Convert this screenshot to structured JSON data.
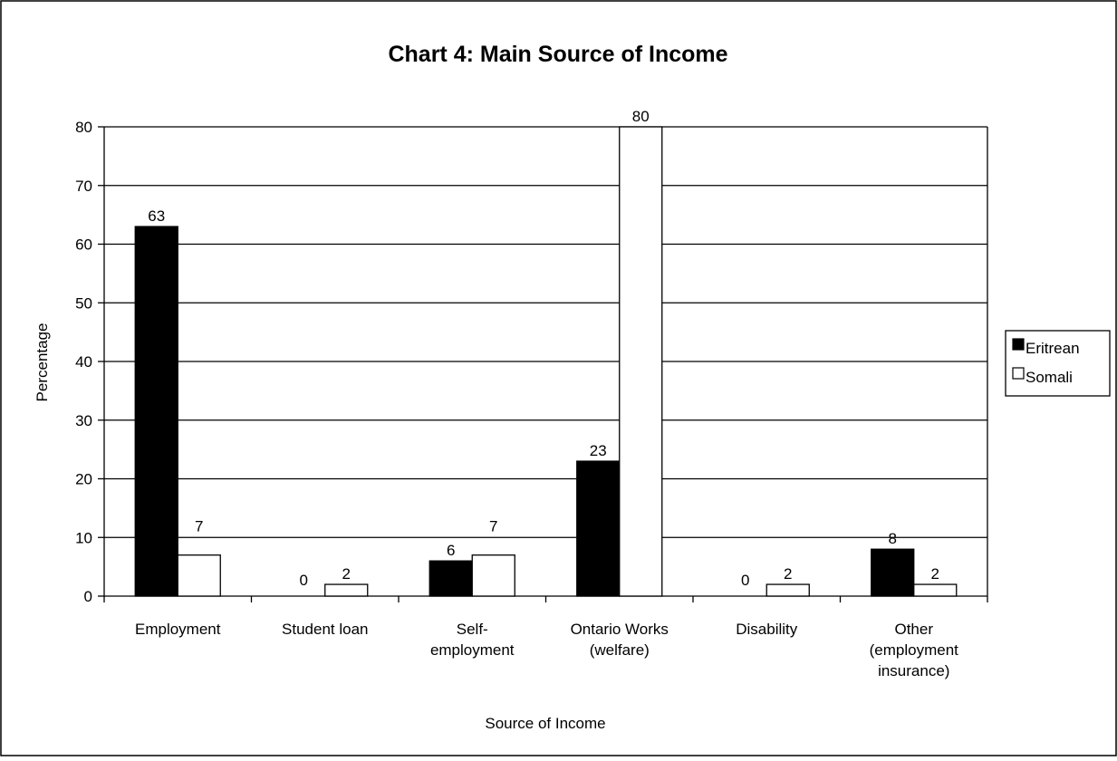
{
  "chart_data": {
    "type": "bar",
    "title": "Chart 4: Main Source of Income",
    "xlabel": "Source of Income",
    "ylabel": "Percentage",
    "ylim": [
      0,
      80
    ],
    "yticks": [
      0,
      10,
      20,
      30,
      40,
      50,
      60,
      70,
      80
    ],
    "grid": true,
    "legend_position": "right",
    "categories": [
      [
        "Employment"
      ],
      [
        "Student loan"
      ],
      [
        "Self-",
        "employment"
      ],
      [
        "Ontario Works",
        "(welfare)"
      ],
      [
        "Disability"
      ],
      [
        "Other",
        "(employment",
        "insurance)"
      ]
    ],
    "series": [
      {
        "name": "Eritrean",
        "color": "#000000",
        "values": [
          63,
          0,
          6,
          23,
          0,
          8
        ]
      },
      {
        "name": "Somali",
        "color": "#ffffff",
        "values": [
          7,
          2,
          7,
          80,
          2,
          2
        ]
      }
    ]
  }
}
